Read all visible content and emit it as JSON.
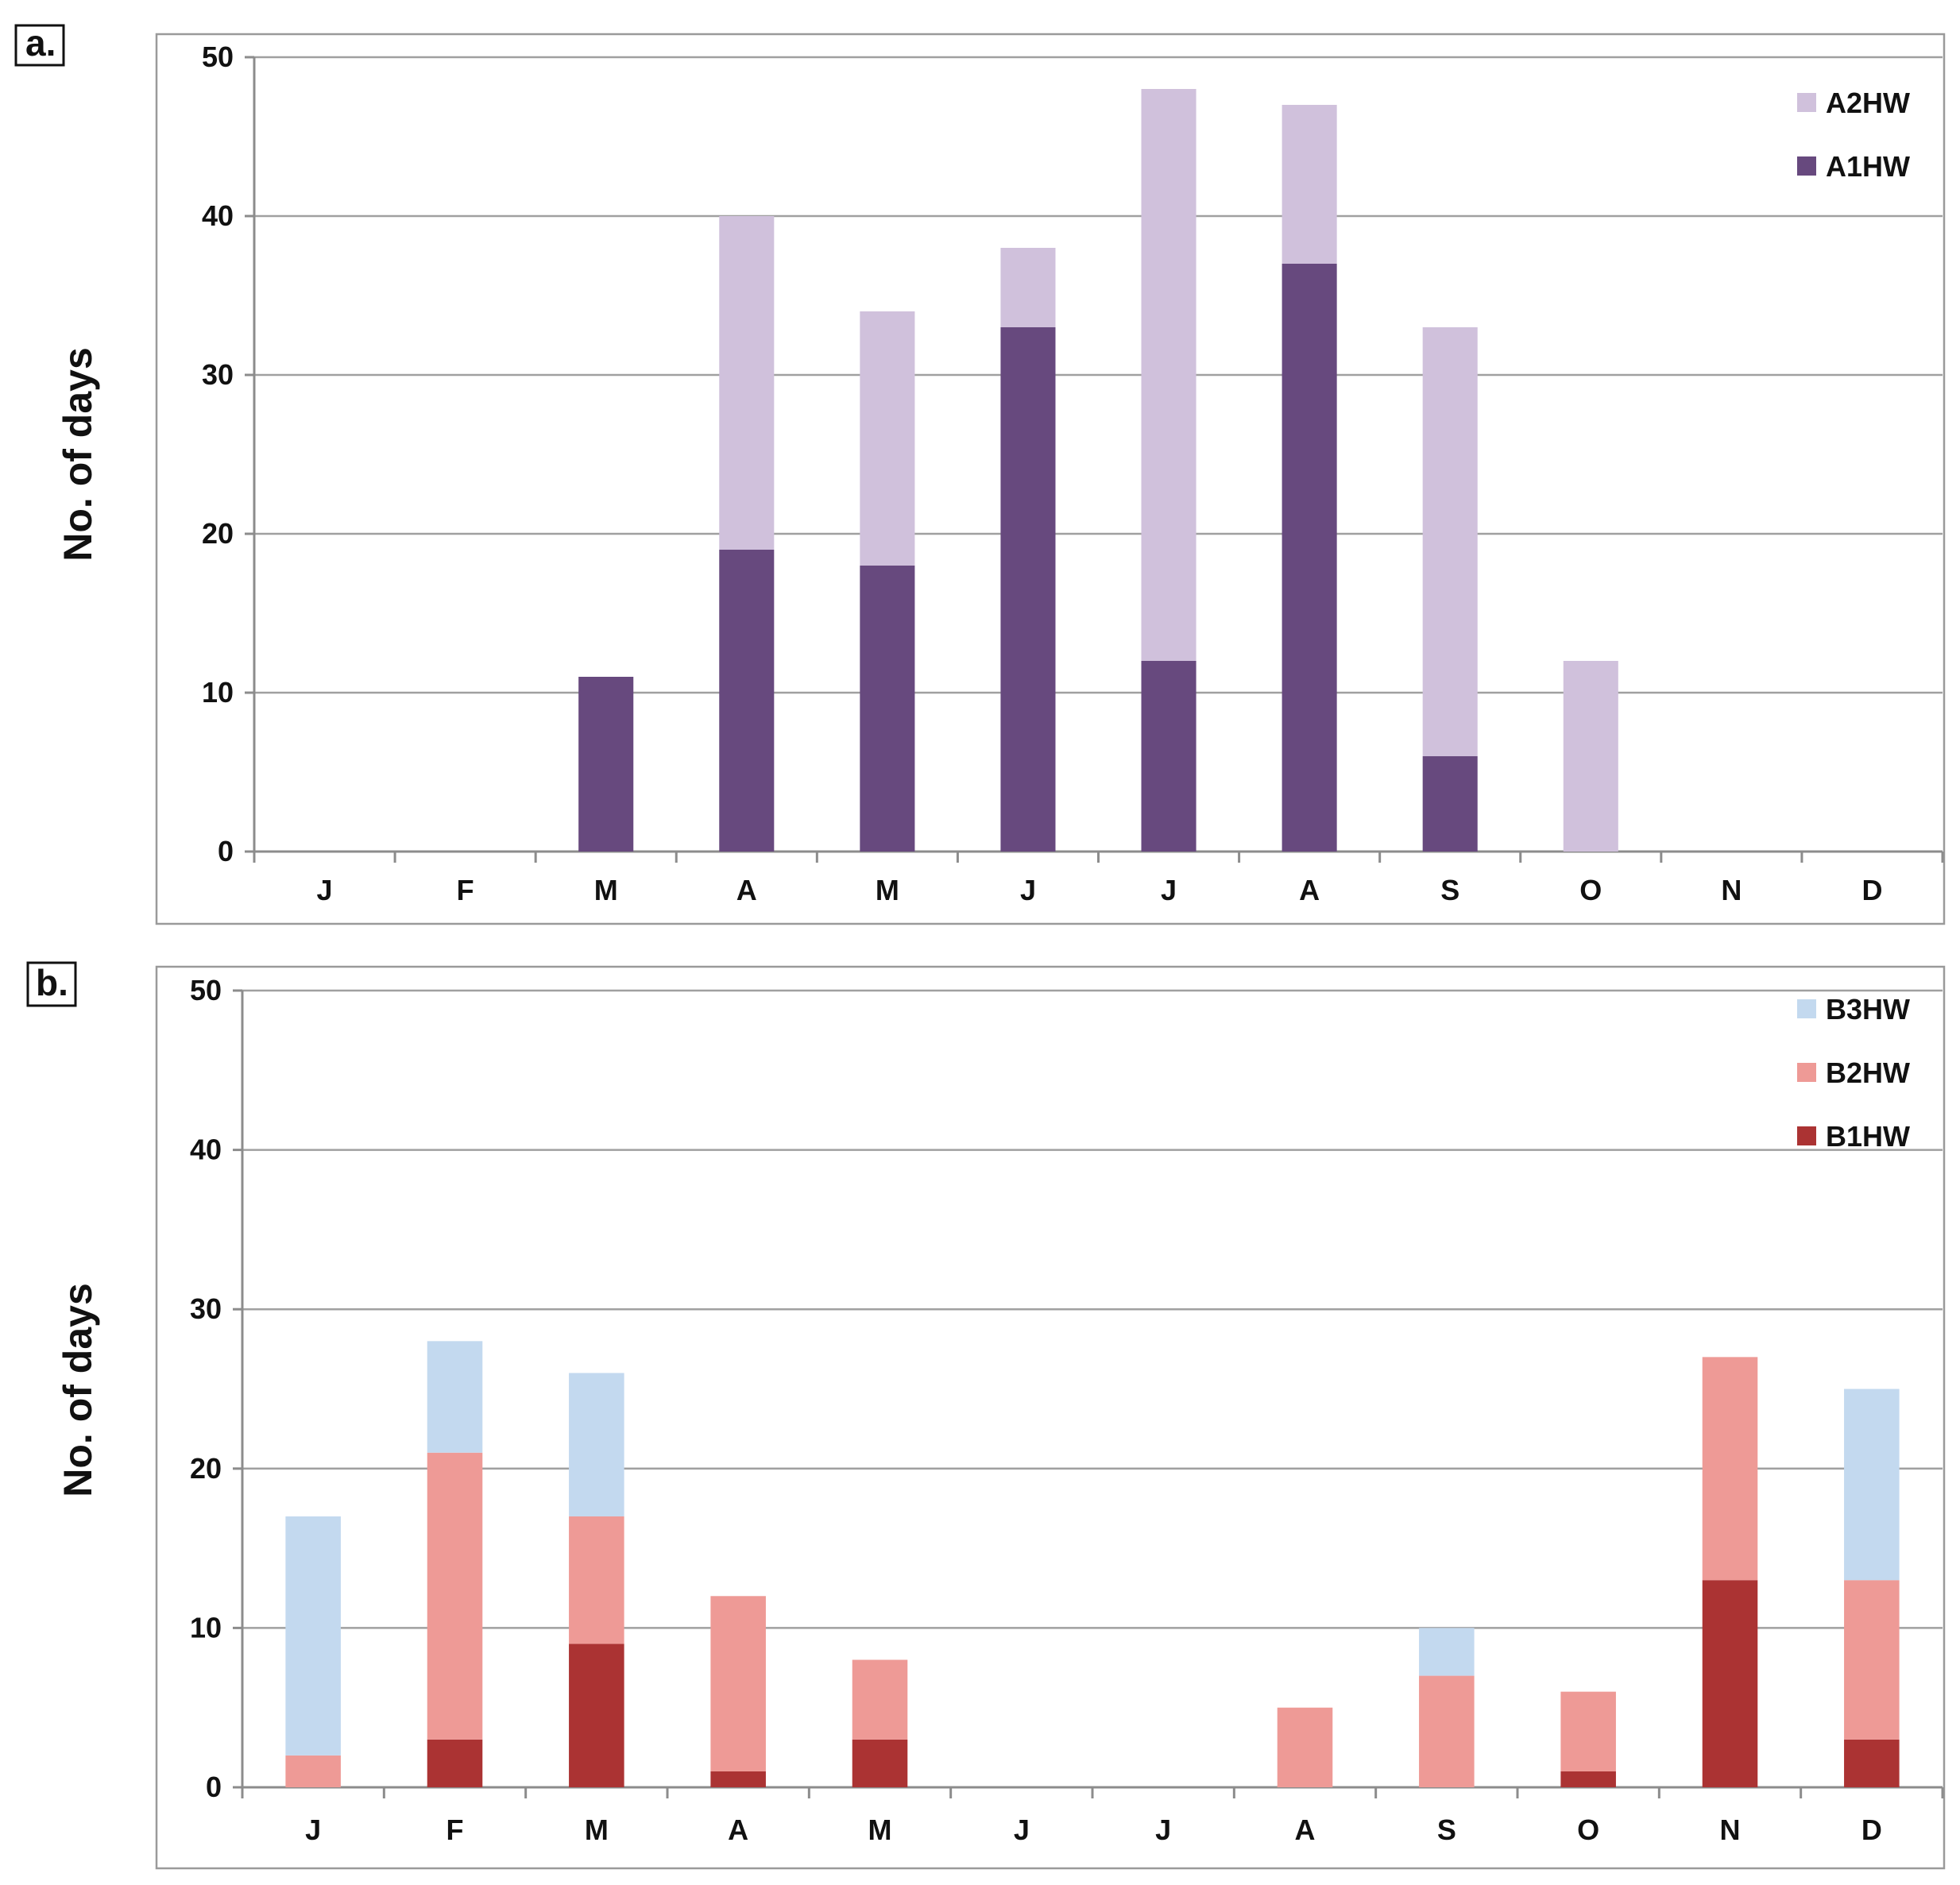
{
  "chart_data": [
    {
      "panel_label": "a.",
      "type": "bar",
      "stacked": true,
      "categories": [
        "J",
        "F",
        "M",
        "A",
        "M",
        "J",
        "J",
        "A",
        "S",
        "O",
        "N",
        "D"
      ],
      "series": [
        {
          "name": "A1HW",
          "color": "#67497e",
          "values": [
            0,
            0,
            11,
            19,
            18,
            33,
            12,
            37,
            6,
            0,
            0,
            0
          ]
        },
        {
          "name": "A2HW",
          "color": "#d0c1dc",
          "values": [
            0,
            0,
            0,
            21,
            16,
            5,
            36,
            10,
            27,
            12,
            0,
            0
          ]
        }
      ],
      "legend_order": [
        "A2HW",
        "A1HW"
      ],
      "legend_position": "top-right",
      "xlabel": "",
      "ylabel": "No. of days",
      "ylim": [
        0,
        50
      ],
      "yticks": [
        0,
        10,
        20,
        30,
        40,
        50
      ],
      "grid": true
    },
    {
      "panel_label": "b.",
      "type": "bar",
      "stacked": true,
      "categories": [
        "J",
        "F",
        "M",
        "A",
        "M",
        "J",
        "J",
        "A",
        "S",
        "O",
        "N",
        "D"
      ],
      "series": [
        {
          "name": "B1HW",
          "color": "#ab3333",
          "values": [
            0,
            3,
            9,
            1,
            3,
            0,
            0,
            0,
            0,
            1,
            13,
            3
          ]
        },
        {
          "name": "B2HW",
          "color": "#ee9a96",
          "values": [
            2,
            18,
            8,
            11,
            5,
            0,
            0,
            5,
            7,
            5,
            14,
            10
          ]
        },
        {
          "name": "B3HW",
          "color": "#c3d9ef",
          "values": [
            15,
            7,
            9,
            0,
            0,
            0,
            0,
            0,
            3,
            0,
            0,
            12
          ]
        }
      ],
      "legend_order": [
        "B3HW",
        "B2HW",
        "B1HW"
      ],
      "legend_position": "top-right",
      "xlabel": "",
      "ylabel": "No. of days",
      "ylim": [
        0,
        50
      ],
      "yticks": [
        0,
        10,
        20,
        30,
        40,
        50
      ],
      "grid": true
    }
  ]
}
